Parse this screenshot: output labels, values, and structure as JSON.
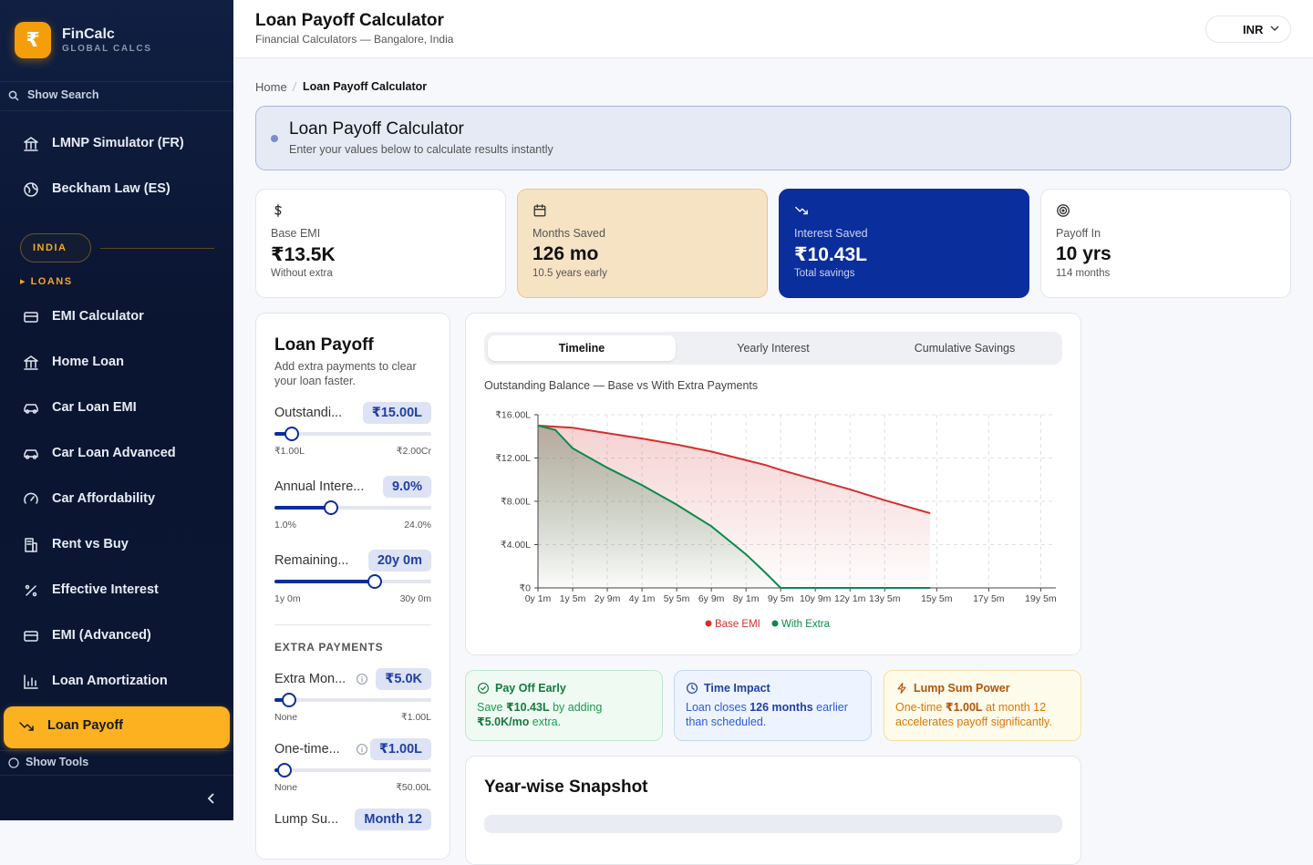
{
  "brand": {
    "logo": "₹",
    "name": "FinCalc",
    "tagline": "GLOBAL CALCS"
  },
  "sidebar": {
    "search": "Show Search",
    "top_items": [
      "LMNP Simulator (FR)",
      "Beckham Law (ES)"
    ],
    "region": "INDIA",
    "section": "▸ LOANS",
    "items": [
      "EMI Calculator",
      "Home Loan",
      "Car Loan EMI",
      "Car Loan Advanced",
      "Car Affordability",
      "Rent vs Buy",
      "Effective Interest",
      "EMI (Advanced)",
      "Loan Amortization",
      "Loan Payoff"
    ],
    "active_index": 9,
    "tools": "Show Tools"
  },
  "header": {
    "title": "Loan Payoff Calculator",
    "subtitle": "Financial Calculators — Bangalore, India",
    "currency": "INR"
  },
  "breadcrumb": [
    "Home",
    "Loan Payoff Calculator"
  ],
  "banner": {
    "title": "Loan Payoff Calculator",
    "subtitle": "Enter your values below to calculate results instantly"
  },
  "stats": [
    {
      "label": "Base EMI",
      "value": "₹13.5K",
      "note": "Without extra"
    },
    {
      "label": "Months Saved",
      "value": "126 mo",
      "note": "10.5 years early"
    },
    {
      "label": "Interest Saved",
      "value": "₹10.43L",
      "note": "Total savings"
    },
    {
      "label": "Payoff In",
      "value": "10 yrs",
      "note": "114 months"
    }
  ],
  "panel": {
    "title": "Loan Payoff",
    "description": "Add extra payments to clear your loan faster.",
    "inputs": [
      {
        "label": "Outstandi...",
        "value": "₹15.00L",
        "min": "₹1.00L",
        "max": "₹2.00Cr"
      },
      {
        "label": "Annual Intere...",
        "value": "9.0%",
        "min": "1.0%",
        "max": "24.0%"
      },
      {
        "label": "Remaining...",
        "value": "20y 0m",
        "min": "1y 0m",
        "max": "30y 0m"
      }
    ],
    "section": "EXTRA PAYMENTS",
    "extra_inputs": [
      {
        "label": "Extra Mon...",
        "value": "₹5.0K",
        "min": "None",
        "max": "₹1.00L"
      },
      {
        "label": "One-time...",
        "value": "₹1.00L",
        "min": "None",
        "max": "₹50.00L"
      },
      {
        "label": "Lump Su...",
        "value": "Month 12"
      }
    ]
  },
  "tabs": [
    "Timeline",
    "Yearly Interest",
    "Cumulative Savings"
  ],
  "chart_data": {
    "type": "line",
    "title": "Outstanding Balance — Base vs With Extra Payments",
    "x": [
      1,
      9,
      17,
      25,
      33,
      49,
      65,
      81,
      97,
      106,
      113,
      129,
      145,
      161,
      182
    ],
    "series": [
      {
        "name": "Base EMI",
        "color": "#d32f2f",
        "values": [
          1500000,
          1490000,
          1480000,
          1455000,
          1430000,
          1380000,
          1325000,
          1260000,
          1180000,
          1135000,
          1090000,
          1000000,
          910000,
          810000,
          690000
        ]
      },
      {
        "name": "With Extra",
        "color": "#0b8a4b",
        "values": [
          1500000,
          1460000,
          1290000,
          1200000,
          1110000,
          950000,
          770000,
          570000,
          310000,
          140000,
          0,
          0,
          0,
          0,
          0
        ]
      }
    ],
    "xlim": [
      1,
      240
    ],
    "xticks": [
      {
        "value": 1,
        "label": "0y 1m"
      },
      {
        "value": 17,
        "label": "1y 5m"
      },
      {
        "value": 33,
        "label": "2y 9m"
      },
      {
        "value": 49,
        "label": "4y 1m"
      },
      {
        "value": 65,
        "label": "5y 5m"
      },
      {
        "value": 81,
        "label": "6y 9m"
      },
      {
        "value": 97,
        "label": "8y 1m"
      },
      {
        "value": 113,
        "label": "9y 5m"
      },
      {
        "value": 129,
        "label": "10y 9m"
      },
      {
        "value": 145,
        "label": "12y 1m"
      },
      {
        "value": 161,
        "label": "13y 5m"
      },
      {
        "value": 185,
        "label": "15y 5m"
      },
      {
        "value": 209,
        "label": "17y 5m"
      },
      {
        "value": 233,
        "label": "19y 5m"
      }
    ],
    "ylim": [
      0,
      1600000
    ],
    "yticks": [
      {
        "value": 0,
        "label": "₹0"
      },
      {
        "value": 400000,
        "label": "₹4.00L"
      },
      {
        "value": 800000,
        "label": "₹8.00L"
      },
      {
        "value": 1200000,
        "label": "₹12.00L"
      },
      {
        "value": 1600000,
        "label": "₹16.00L"
      }
    ],
    "grid": true
  },
  "insights": [
    {
      "title": "Pay Off Early",
      "parts": [
        "Save ",
        "₹10.43L",
        " by adding ",
        "₹5.0K/mo",
        " extra."
      ]
    },
    {
      "title": "Time Impact",
      "parts": [
        "Loan closes ",
        "126 months",
        " earlier than scheduled."
      ]
    },
    {
      "title": "Lump Sum Power",
      "parts": [
        "One-time ",
        "₹1.00L",
        " at month 12 accelerates payoff significantly."
      ]
    }
  ],
  "snapshot": {
    "title": "Year-wise Snapshot"
  }
}
